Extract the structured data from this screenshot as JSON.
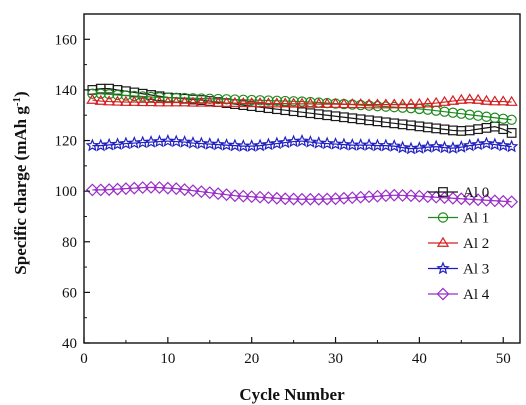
{
  "chart_data": {
    "type": "line",
    "xlabel": "Cycle Number",
    "ylabel": "Specific charge (mAh g",
    "ylabel_superscript": "-1",
    "ylabel_close": ")",
    "xlim": [
      0,
      52
    ],
    "ylim": [
      40,
      170
    ],
    "x_ticks": [
      0,
      10,
      20,
      30,
      40,
      50
    ],
    "y_ticks": [
      40,
      60,
      80,
      100,
      120,
      140,
      160
    ],
    "grid": false,
    "legend_position": "bottom-right",
    "series": [
      {
        "name": "Al 0",
        "color": "#1a1a1a",
        "marker": "square",
        "x": [
          1,
          2,
          3,
          4,
          5,
          6,
          7,
          8,
          9,
          10,
          11,
          12,
          13,
          14,
          15,
          16,
          17,
          18,
          19,
          20,
          21,
          22,
          23,
          24,
          25,
          26,
          27,
          28,
          29,
          30,
          31,
          32,
          33,
          34,
          35,
          36,
          37,
          38,
          39,
          40,
          41,
          42,
          43,
          44,
          45,
          46,
          47,
          48,
          49,
          50,
          51
        ],
        "values": [
          140,
          140.5,
          140.5,
          140,
          139.5,
          139,
          138.5,
          138,
          137.5,
          137,
          136.8,
          136.5,
          136.2,
          136,
          135.6,
          135.2,
          134.8,
          134.4,
          134,
          133.6,
          133.2,
          132.8,
          132.4,
          132,
          131.6,
          131.2,
          130.8,
          130.4,
          130,
          129.6,
          129.2,
          128.8,
          128.4,
          128,
          127.6,
          127.2,
          126.8,
          126.4,
          126,
          125.6,
          125.2,
          124.8,
          124.4,
          124,
          123.8,
          124,
          124.5,
          125,
          125.5,
          124.5,
          123
        ]
      },
      {
        "name": "Al 1",
        "color": "#1e8a1e",
        "marker": "circle",
        "x": [
          1,
          2,
          3,
          4,
          5,
          6,
          7,
          8,
          9,
          10,
          11,
          12,
          13,
          14,
          15,
          16,
          17,
          18,
          19,
          20,
          21,
          22,
          23,
          24,
          25,
          26,
          27,
          28,
          29,
          30,
          31,
          32,
          33,
          34,
          35,
          36,
          37,
          38,
          39,
          40,
          41,
          42,
          43,
          44,
          45,
          46,
          47,
          48,
          49,
          50,
          51
        ],
        "values": [
          138.5,
          138.5,
          138.3,
          138,
          137.8,
          137.6,
          137.4,
          137.2,
          137.1,
          137,
          136.9,
          136.8,
          136.7,
          136.6,
          136.5,
          136.4,
          136.3,
          136.2,
          136.1,
          136,
          135.9,
          135.8,
          135.7,
          135.6,
          135.5,
          135.4,
          135.2,
          135,
          134.8,
          134.6,
          134.4,
          134.2,
          134,
          133.8,
          133.6,
          133.4,
          133.2,
          133,
          132.8,
          132.5,
          132.2,
          131.8,
          131.4,
          131,
          130.6,
          130.2,
          129.8,
          129.4,
          129,
          128.6,
          128.2
        ]
      },
      {
        "name": "Al 2",
        "color": "#d42020",
        "marker": "triangle",
        "x": [
          1,
          2,
          3,
          4,
          5,
          6,
          7,
          8,
          9,
          10,
          11,
          12,
          13,
          14,
          15,
          16,
          17,
          18,
          19,
          20,
          21,
          22,
          23,
          24,
          25,
          26,
          27,
          28,
          29,
          30,
          31,
          32,
          33,
          34,
          35,
          36,
          37,
          38,
          39,
          40,
          41,
          42,
          43,
          44,
          45,
          46,
          47,
          48,
          49,
          50,
          51
        ],
        "values": [
          136,
          135.6,
          135.4,
          135.3,
          135.2,
          135.2,
          135.1,
          135.1,
          135,
          135,
          135,
          135,
          134.9,
          134.9,
          134.9,
          134.8,
          134.8,
          134.8,
          134.7,
          134.7,
          134.7,
          134.6,
          134.6,
          134.6,
          134.5,
          134.5,
          134.5,
          134.4,
          134.4,
          134.4,
          134.3,
          134.3,
          134.3,
          134.2,
          134.2,
          134.2,
          134.2,
          134.2,
          134.3,
          134.4,
          134.6,
          134.8,
          135.2,
          135.6,
          136,
          136.2,
          136,
          135.6,
          135.4,
          135.4,
          135.2
        ]
      },
      {
        "name": "Al 3",
        "color": "#2020c0",
        "marker": "star",
        "x": [
          1,
          2,
          3,
          4,
          5,
          6,
          7,
          8,
          9,
          10,
          11,
          12,
          13,
          14,
          15,
          16,
          17,
          18,
          19,
          20,
          21,
          22,
          23,
          24,
          25,
          26,
          27,
          28,
          29,
          30,
          31,
          32,
          33,
          34,
          35,
          36,
          37,
          38,
          39,
          40,
          41,
          42,
          43,
          44,
          45,
          46,
          47,
          48,
          49,
          50,
          51
        ],
        "values": [
          118,
          118,
          118.3,
          118.5,
          118.8,
          119,
          119.2,
          119.4,
          119.6,
          119.8,
          119.6,
          119.4,
          119,
          118.8,
          118.6,
          118.4,
          118.2,
          118,
          117.8,
          117.8,
          118,
          118.4,
          118.8,
          119.2,
          119.6,
          119.8,
          119.4,
          119,
          118.8,
          118.6,
          118.4,
          118.2,
          118.2,
          118.2,
          118,
          118,
          117.8,
          117.2,
          116.8,
          117,
          117.4,
          117.6,
          117.2,
          117,
          117.4,
          118,
          118.4,
          118.8,
          118.4,
          118,
          117.6
        ]
      },
      {
        "name": "Al 4",
        "color": "#9a2fc9",
        "marker": "diamond",
        "x": [
          1,
          2,
          3,
          4,
          5,
          6,
          7,
          8,
          9,
          10,
          11,
          12,
          13,
          14,
          15,
          16,
          17,
          18,
          19,
          20,
          21,
          22,
          23,
          24,
          25,
          26,
          27,
          28,
          29,
          30,
          31,
          32,
          33,
          34,
          35,
          36,
          37,
          38,
          39,
          40,
          41,
          42,
          43,
          44,
          45,
          46,
          47,
          48,
          49,
          50,
          51
        ],
        "values": [
          100.5,
          100.5,
          100.6,
          100.8,
          101,
          101.2,
          101.4,
          101.5,
          101.4,
          101.2,
          101,
          100.6,
          100.2,
          99.8,
          99.4,
          99,
          98.6,
          98.2,
          98,
          97.8,
          97.6,
          97.4,
          97.2,
          97,
          96.9,
          96.8,
          96.8,
          96.8,
          96.9,
          97,
          97.2,
          97.4,
          97.6,
          97.8,
          98,
          98.2,
          98.4,
          98.3,
          98.2,
          98,
          97.8,
          97.6,
          97.4,
          97.2,
          97,
          96.8,
          96.6,
          96.4,
          96.2,
          96,
          95.8
        ]
      }
    ]
  }
}
